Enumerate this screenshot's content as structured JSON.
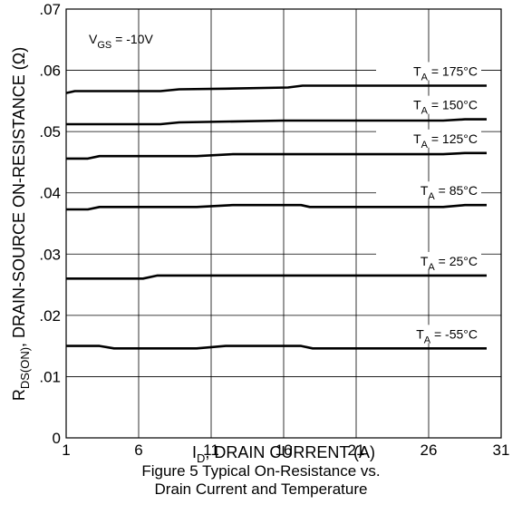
{
  "chart_data": {
    "type": "line",
    "title": "",
    "xlabel": "I_D, DRAIN CURRENT (A)",
    "ylabel": "R_DS(ON), DRAIN-SOURCE ON-RESISTANCE (Ω)",
    "xlim": [
      1,
      31
    ],
    "ylim": [
      0,
      0.07
    ],
    "x_ticks": [
      1,
      6,
      11,
      16,
      21,
      26,
      31
    ],
    "x_tick_labels": [
      "1",
      "6",
      "11",
      "16",
      "21",
      "26",
      "31"
    ],
    "y_ticks": [
      0,
      0.01,
      0.02,
      0.03,
      0.04,
      0.05,
      0.06,
      0.07
    ],
    "y_tick_labels": [
      "0",
      ".01",
      ".02",
      ".03",
      ".04",
      ".05",
      ".06",
      ".07"
    ],
    "grid": true,
    "annotation": {
      "sym": "V",
      "sub": "GS",
      "text": " = -10V"
    },
    "series": [
      {
        "name": "T_A = 175°C",
        "label_sub": "A",
        "label_rest": " = 175°C",
        "points": [
          [
            1,
            0.0563
          ],
          [
            1.6,
            0.0566
          ],
          [
            7.5,
            0.0566
          ],
          [
            8.8,
            0.0569
          ],
          [
            12,
            0.057
          ],
          [
            16.3,
            0.0572
          ],
          [
            17.3,
            0.0575
          ],
          [
            30,
            0.0575
          ]
        ]
      },
      {
        "name": "T_A = 150°C",
        "label_sub": "A",
        "label_rest": " = 150°C",
        "points": [
          [
            1,
            0.0512
          ],
          [
            7.5,
            0.0512
          ],
          [
            8.8,
            0.0515
          ],
          [
            16,
            0.0518
          ],
          [
            27,
            0.0518
          ],
          [
            28.5,
            0.052
          ],
          [
            30,
            0.052
          ]
        ]
      },
      {
        "name": "T_A = 125°C",
        "label_sub": "A",
        "label_rest": " = 125°C",
        "points": [
          [
            1,
            0.0456
          ],
          [
            2.5,
            0.0456
          ],
          [
            3.3,
            0.046
          ],
          [
            10,
            0.046
          ],
          [
            12.5,
            0.0463
          ],
          [
            27,
            0.0463
          ],
          [
            28.5,
            0.0465
          ],
          [
            30,
            0.0465
          ]
        ]
      },
      {
        "name": "T_A = 85°C",
        "label_sub": "A",
        "label_rest": " = 85°C",
        "points": [
          [
            1,
            0.0373
          ],
          [
            2.5,
            0.0373
          ],
          [
            3.3,
            0.0377
          ],
          [
            10,
            0.0377
          ],
          [
            12.5,
            0.038
          ],
          [
            17.2,
            0.038
          ],
          [
            17.8,
            0.0377
          ],
          [
            27,
            0.0377
          ],
          [
            28.5,
            0.038
          ],
          [
            30,
            0.038
          ]
        ]
      },
      {
        "name": "T_A = 25°C",
        "label_sub": "A",
        "label_rest": " = 25°C",
        "points": [
          [
            1,
            0.026
          ],
          [
            6.3,
            0.026
          ],
          [
            7.3,
            0.0265
          ],
          [
            30,
            0.0265
          ]
        ]
      },
      {
        "name": "T_A = -55°C",
        "label_sub": "A",
        "label_rest": " = -55°C",
        "points": [
          [
            1,
            0.015
          ],
          [
            3.3,
            0.015
          ],
          [
            4.3,
            0.0146
          ],
          [
            10,
            0.0146
          ],
          [
            12,
            0.015
          ],
          [
            17.2,
            0.015
          ],
          [
            18,
            0.0146
          ],
          [
            30,
            0.0146
          ]
        ]
      }
    ]
  },
  "caption": {
    "line1": "Figure 5 Typical On-Resistance vs.",
    "line2": "Drain Current and Temperature"
  }
}
